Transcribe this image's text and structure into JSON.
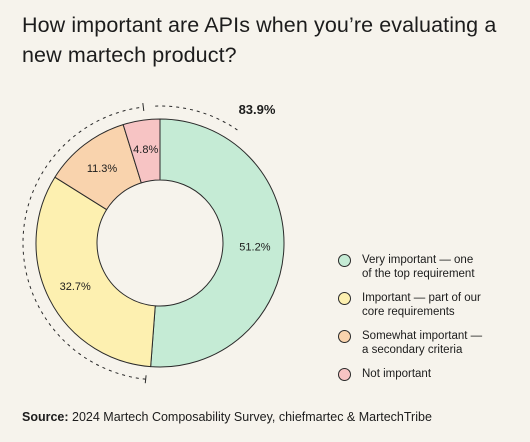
{
  "title": "How important are APIs when you’re evaluating a new martech product?",
  "chart_data": {
    "type": "pie",
    "title": "How important are APIs when you’re evaluating a new martech product?",
    "slices": [
      {
        "label": "Very important — one of the top requirement",
        "value": 51.2,
        "value_label": "51.2%",
        "color": "#c5ebd5"
      },
      {
        "label": "Important — part of our core requirements",
        "value": 32.7,
        "value_label": "32.7%",
        "color": "#fdf0b0"
      },
      {
        "label": "Somewhat important — a secondary criteria",
        "value": 11.3,
        "value_label": "11.3%",
        "color": "#f9d3ad"
      },
      {
        "label": "Not important",
        "value": 4.8,
        "value_label": "4.8%",
        "color": "#f7c4c4"
      }
    ],
    "annotation": "83.9%",
    "legend_position": "right"
  },
  "legend": [
    {
      "lines": [
        "Very important — one",
        "of the top requirement"
      ],
      "color": "#c5ebd5"
    },
    {
      "lines": [
        "Important — part of our",
        "core requirements"
      ],
      "color": "#fdf0b0"
    },
    {
      "lines": [
        "Somewhat important —",
        "a secondary criteria"
      ],
      "color": "#f9d3ad"
    },
    {
      "lines": [
        "Not important"
      ],
      "color": "#f7c4c4"
    }
  ],
  "source": {
    "label": "Source:",
    "text": "2024 Martech Composability Survey, chiefmartec & MartechTribe"
  },
  "colors": {
    "background": "#f6f3ec",
    "outline": "#2a2a2a",
    "text": "#1c1c1c"
  }
}
